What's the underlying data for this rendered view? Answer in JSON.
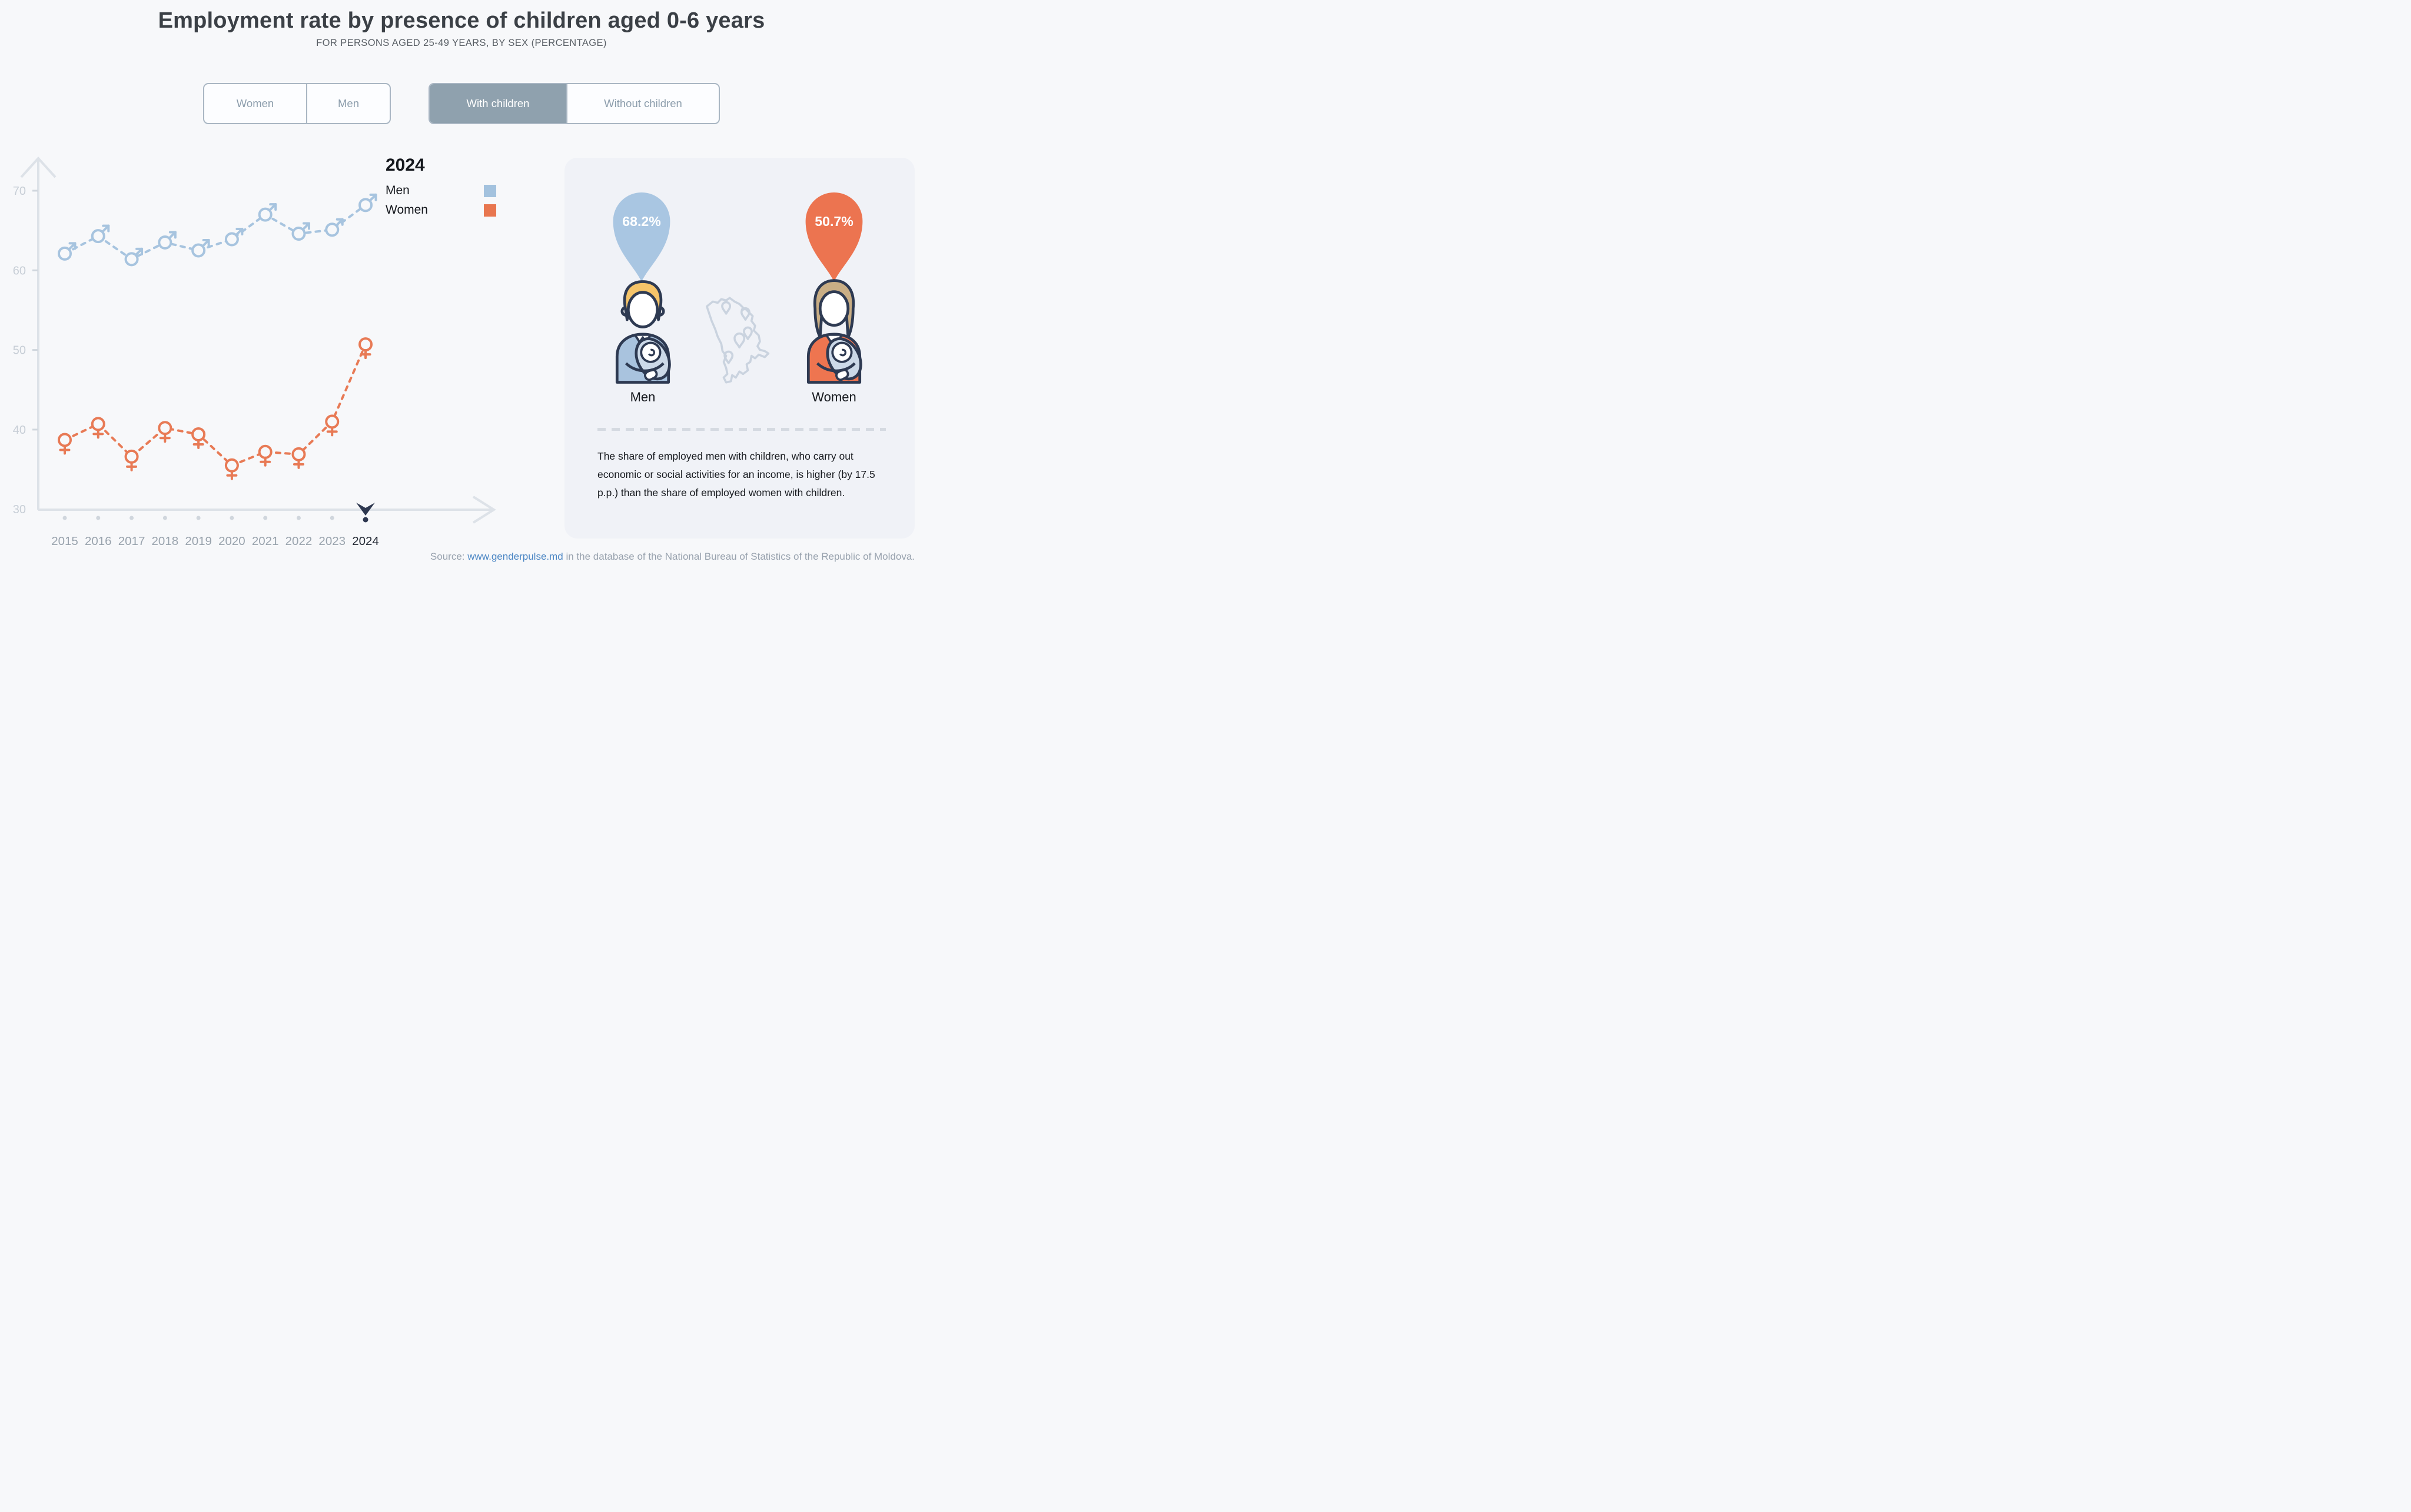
{
  "page": {
    "title": "Employment rate by presence of children aged 0-6 years",
    "subtitle": "FOR PERSONS AGED 25-49 YEARS, BY SEX (PERCENTAGE)"
  },
  "toggles": {
    "sex": {
      "options": [
        {
          "label": "Women",
          "active": false
        },
        {
          "label": "Men",
          "active": false
        }
      ]
    },
    "children": {
      "options": [
        {
          "label": "With children",
          "active": true
        },
        {
          "label": "Without children",
          "active": false
        }
      ]
    }
  },
  "chart_data": {
    "type": "line",
    "x": [
      2015,
      2016,
      2017,
      2018,
      2019,
      2020,
      2021,
      2022,
      2023,
      2024
    ],
    "series": [
      {
        "name": "Men",
        "marker": "male-symbol",
        "color": "#a7c4df",
        "values": [
          62.1,
          64.3,
          61.4,
          63.5,
          62.5,
          63.9,
          67.0,
          64.6,
          65.1,
          68.2
        ]
      },
      {
        "name": "Women",
        "marker": "female-symbol",
        "color": "#e87a55",
        "values": [
          38.7,
          40.7,
          36.6,
          40.2,
          39.4,
          35.5,
          37.2,
          36.9,
          41.0,
          50.7
        ]
      }
    ],
    "ylim": [
      30,
      72
    ],
    "yticks": [
      30,
      40,
      50,
      60,
      70
    ],
    "grid": false,
    "selected_year": 2024,
    "legend": {
      "title": "2024",
      "position": "top-right-of-plot",
      "entries": [
        {
          "label": "Men",
          "color": "#a3c2de"
        },
        {
          "label": "Women",
          "color": "#e8764f"
        }
      ]
    }
  },
  "panel": {
    "men_value": "68.2%",
    "women_value": "50.7%",
    "men_label": "Men",
    "women_label": "Women",
    "description": "The share of employed men with children, who carry out economic or social activities for an income, is higher (by 17.5 p.p.) than the share of employed women with children."
  },
  "footer": {
    "source_prefix": "Source: ",
    "source_link": "www.genderpulse.md",
    "source_suffix": " in the database of the National Bureau of Statistics of the Republic of Moldova."
  },
  "colors": {
    "bg": "#f7f8fa",
    "title": "#3b4046",
    "subtitle": "#5a6066",
    "toggle_border": "#a9b6c3",
    "toggle_inactive_text": "#8c9dac",
    "toggle_active_bg": "#8fa1ae",
    "toggle_inactive_bg": "#fcfdff",
    "axis": "#dde2e8",
    "tick_dash": "#d0d6dd",
    "tick_label": "#c7ced6",
    "year_label": "#99a3ad",
    "year_selected": "#232934",
    "navy": "#2e3850",
    "panel_bg": "#f0f2f7",
    "balloon_blue": "#a9c6e2",
    "balloon_orange": "#ec7450",
    "divider": "#d5dae1",
    "paragraph": "#16191e",
    "source": "#98a2ae",
    "link": "#4b86c4",
    "map_outline": "#cad3df",
    "outline": "#2e3a52",
    "blond": "#f5c469",
    "tan": "#c9ae85",
    "suit": "#a9c3de",
    "top_orange": "#ee7550",
    "bundle": "#ccd9e8"
  }
}
